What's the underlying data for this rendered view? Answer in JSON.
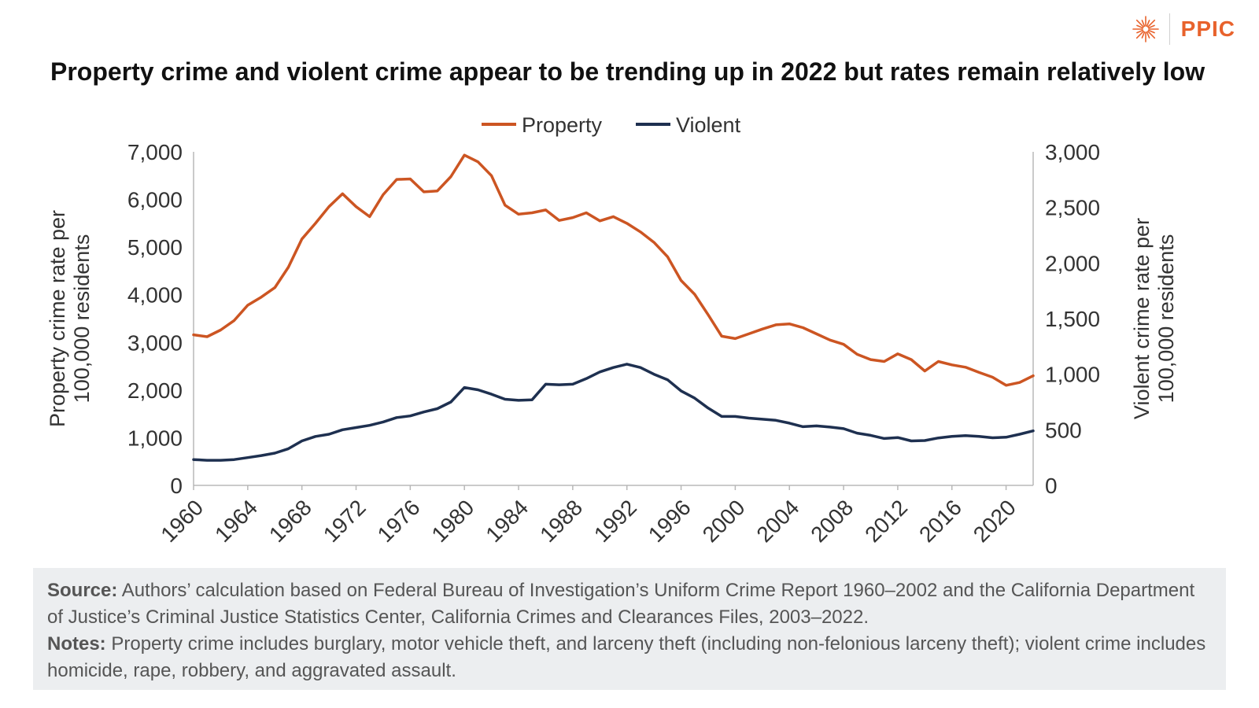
{
  "logo": {
    "text": "PPIC",
    "icon": "starburst-icon",
    "color": "#e8622c"
  },
  "title": "Property crime and violent crime appear to be trending up in 2022 but rates remain relatively low",
  "footer": {
    "source_label": "Source:",
    "source_text": "Authors’ calculation based on Federal Bureau of Investigation’s Uniform Crime Report 1960–2002 and the California Department of Justice’s Criminal Justice Statistics Center, California Crimes and Clearances Files, 2003–2022.",
    "notes_label": "Notes:",
    "notes_text": "Property crime includes burglary, motor vehicle theft, and larceny theft (including non-felonious larceny theft); violent crime includes homicide, rape, robbery, and aggravated assault."
  },
  "chart_data": {
    "type": "line",
    "legend_position": "top-center",
    "grid": false,
    "x": [
      1960,
      1961,
      1962,
      1963,
      1964,
      1965,
      1966,
      1967,
      1968,
      1969,
      1970,
      1971,
      1972,
      1973,
      1974,
      1975,
      1976,
      1977,
      1978,
      1979,
      1980,
      1981,
      1982,
      1983,
      1984,
      1985,
      1986,
      1987,
      1988,
      1989,
      1990,
      1991,
      1992,
      1993,
      1994,
      1995,
      1996,
      1997,
      1998,
      1999,
      2000,
      2001,
      2002,
      2003,
      2004,
      2005,
      2006,
      2007,
      2008,
      2009,
      2010,
      2011,
      2012,
      2013,
      2014,
      2015,
      2016,
      2017,
      2018,
      2019,
      2020,
      2021,
      2022
    ],
    "x_ticks": [
      "1960",
      "1964",
      "1968",
      "1972",
      "1976",
      "1980",
      "1984",
      "1988",
      "1992",
      "1996",
      "2000",
      "2004",
      "2008",
      "2012",
      "2016",
      "2020"
    ],
    "x_range": [
      1960,
      2022
    ],
    "y_left": {
      "label": "Property crime rate per 100,000 residents",
      "range": [
        0,
        7000
      ],
      "ticks": [
        "0",
        "1,000",
        "2,000",
        "3,000",
        "4,000",
        "5,000",
        "6,000",
        "7,000"
      ]
    },
    "y_right": {
      "label": "Violent crime rate per 100,000 residents",
      "range": [
        0,
        3000
      ],
      "ticks": [
        "0",
        "500",
        "1,000",
        "1,500",
        "2,000",
        "2,500",
        "3,000"
      ]
    },
    "series": [
      {
        "name": "Property",
        "axis": "left",
        "color": "#cc5522",
        "values": [
          3160,
          3120,
          3260,
          3460,
          3780,
          3950,
          4150,
          4580,
          5170,
          5500,
          5850,
          6120,
          5850,
          5640,
          6100,
          6420,
          6430,
          6160,
          6180,
          6480,
          6930,
          6790,
          6500,
          5880,
          5690,
          5720,
          5780,
          5560,
          5620,
          5720,
          5550,
          5640,
          5500,
          5320,
          5100,
          4800,
          4300,
          4010,
          3580,
          3130,
          3080,
          3180,
          3280,
          3370,
          3390,
          3310,
          3180,
          3050,
          2960,
          2750,
          2640,
          2600,
          2760,
          2640,
          2400,
          2600,
          2530,
          2480,
          2370,
          2270,
          2100,
          2160,
          2300
        ]
      },
      {
        "name": "Violent",
        "axis": "right",
        "color": "#1e3050",
        "values": [
          232,
          226,
          226,
          232,
          250,
          268,
          290,
          330,
          400,
          440,
          460,
          500,
          520,
          540,
          570,
          610,
          625,
          660,
          690,
          750,
          880,
          860,
          820,
          775,
          765,
          770,
          910,
          905,
          910,
          960,
          1020,
          1060,
          1090,
          1060,
          1000,
          950,
          850,
          785,
          695,
          620,
          620,
          605,
          595,
          585,
          560,
          528,
          535,
          524,
          510,
          470,
          450,
          422,
          430,
          400,
          403,
          427,
          440,
          447,
          440,
          428,
          433,
          460,
          490
        ]
      }
    ]
  }
}
